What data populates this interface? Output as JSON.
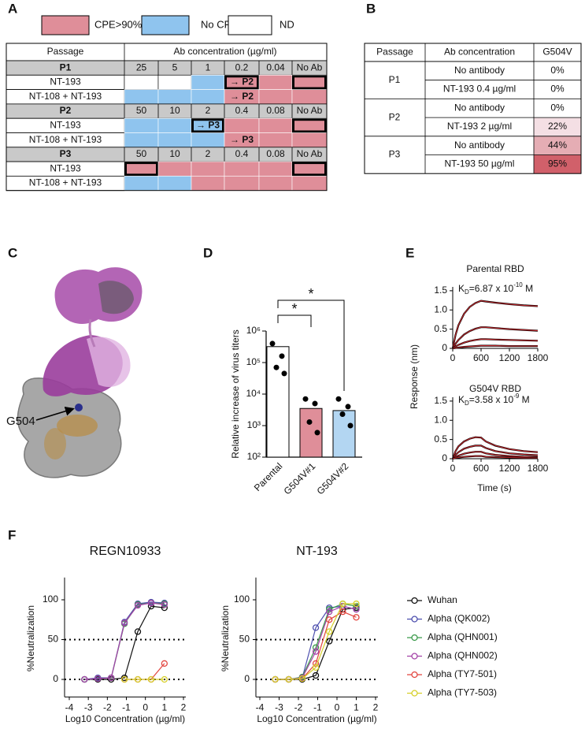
{
  "panel_labels": [
    "A",
    "B",
    "C",
    "D",
    "E",
    "F"
  ],
  "panel_a": {
    "legend": [
      {
        "label": "CPE>90%",
        "color": "#df8e99"
      },
      {
        "label": "No CPE",
        "color": "#8fc4ee"
      },
      {
        "label": "ND",
        "color": "#ffffff"
      }
    ],
    "header": [
      "Passage",
      "Ab concentration (µg/ml)"
    ],
    "blocks": [
      {
        "passage": "P1",
        "concentrations": [
          "25",
          "5",
          "1",
          "0.2",
          "0.04",
          "No Ab"
        ],
        "rows": [
          {
            "label": "NT-193",
            "cells": [
              {
                "state": 2
              },
              {
                "state": 2
              },
              {
                "state": 1
              },
              {
                "state": 0,
                "text": "→ P2",
                "bold": true
              },
              {
                "state": 0
              },
              {
                "state": 0,
                "bold": true
              }
            ]
          },
          {
            "label": "NT-108 + NT-193",
            "cells": [
              {
                "state": 1
              },
              {
                "state": 1
              },
              {
                "state": 1
              },
              {
                "state": 0,
                "text": "→ P2"
              },
              {
                "state": 0
              },
              {
                "state": 0
              }
            ]
          }
        ]
      },
      {
        "passage": "P2",
        "concentrations": [
          "50",
          "10",
          "2",
          "0.4",
          "0.08",
          "No Ab"
        ],
        "rows": [
          {
            "label": "NT-193",
            "cells": [
              {
                "state": 1
              },
              {
                "state": 1
              },
              {
                "state": 1,
                "text": "→ P3",
                "bold": true
              },
              {
                "state": 0
              },
              {
                "state": 0
              },
              {
                "state": 0,
                "bold": true
              }
            ]
          },
          {
            "label": "NT-108 + NT-193",
            "cells": [
              {
                "state": 1
              },
              {
                "state": 1
              },
              {
                "state": 1
              },
              {
                "state": 0,
                "text": "→ P3"
              },
              {
                "state": 0
              },
              {
                "state": 0
              }
            ]
          }
        ]
      },
      {
        "passage": "P3",
        "concentrations": [
          "50",
          "10",
          "2",
          "0.4",
          "0.08",
          "No Ab"
        ],
        "rows": [
          {
            "label": "NT-193",
            "cells": [
              {
                "state": 0,
                "bold": true
              },
              {
                "state": 0
              },
              {
                "state": 0
              },
              {
                "state": 0
              },
              {
                "state": 0
              },
              {
                "state": 0,
                "bold": true
              }
            ]
          },
          {
            "label": "NT-108 + NT-193",
            "cells": [
              {
                "state": 1
              },
              {
                "state": 1
              },
              {
                "state": 0
              },
              {
                "state": 0
              },
              {
                "state": 0
              },
              {
                "state": 0
              }
            ]
          }
        ]
      }
    ]
  },
  "panel_b": {
    "header": [
      "Passage",
      "Ab concentration",
      "G504V"
    ],
    "groups": [
      {
        "passage": "P1",
        "rows": [
          {
            "ab": "No antibody",
            "g504v": "0%",
            "fill": "#ffffff"
          },
          {
            "ab": "NT-193 0.4 µg/ml",
            "g504v": "0%",
            "fill": "#ffffff"
          }
        ]
      },
      {
        "passage": "P2",
        "rows": [
          {
            "ab": "No antibody",
            "g504v": "0%",
            "fill": "#ffffff"
          },
          {
            "ab": "NT-193 2 µg/ml",
            "g504v": "22%",
            "fill": "#f4dfe4"
          }
        ]
      },
      {
        "passage": "P3",
        "rows": [
          {
            "ab": "No antibody",
            "g504v": "44%",
            "fill": "#e5adb4"
          },
          {
            "ab": "NT-193 50 µg/ml",
            "g504v": "95%",
            "fill": "#d1606a"
          }
        ]
      }
    ]
  },
  "panel_c": {
    "label": "G504"
  },
  "chart_data": [
    {
      "type": "bar",
      "log_scale": true,
      "ylabel": "Relative increase of virus titers",
      "categories": [
        "Parental",
        "G504V#1",
        "G504V#2"
      ],
      "values": [
        320000,
        3500,
        3000
      ],
      "colors": [
        "#ffffff",
        "#df8e99",
        "#b3d6f2"
      ],
      "points": [
        [
          400000,
          160000,
          70000,
          45000
        ],
        [
          7000,
          5000,
          1300,
          600
        ],
        [
          7000,
          4000,
          2300,
          1000
        ]
      ],
      "ylim": [
        100,
        1000000
      ],
      "yticks": [
        {
          "value": 100,
          "label": "10²"
        },
        {
          "value": 1000,
          "label": "10³"
        },
        {
          "value": 10000,
          "label": "10⁴"
        },
        {
          "value": 100000,
          "label": "10⁵"
        },
        {
          "value": 1000000,
          "label": "10⁶"
        }
      ],
      "brackets": [
        {
          "text": "*",
          "between": [
            0,
            1
          ]
        },
        {
          "text": "*",
          "between": [
            0,
            2
          ]
        }
      ]
    },
    {
      "type": "kinetics",
      "ylabel": "Response (nm)",
      "xlabel": "Time (s)",
      "x": [
        0,
        60,
        120,
        240,
        360,
        480,
        600,
        700,
        900,
        1200,
        1500,
        1800
      ],
      "xlim": [
        0,
        1800
      ],
      "xticks": [
        0,
        600,
        1200,
        1800
      ],
      "ylim": [
        0,
        1.6
      ],
      "yticks": [
        0,
        0.5,
        {
          "value": 1,
          "label": "1.0"
        },
        1.5
      ],
      "panels": [
        {
          "title": "Parental RBD",
          "kd": {
            "k": "K",
            "sub": "D",
            "text": "=6.87 x 10",
            "sup": "-10",
            "unit": " M"
          },
          "series": [
            {
              "color": "#c0262b",
              "values": [
                0,
                0.35,
                0.6,
                0.9,
                1.08,
                1.18,
                1.24,
                1.22,
                1.19,
                1.15,
                1.12,
                1.1
              ]
            },
            {
              "color": "#c0262b",
              "values": [
                0,
                0.12,
                0.22,
                0.36,
                0.45,
                0.51,
                0.55,
                0.55,
                0.53,
                0.5,
                0.48,
                0.46
              ]
            },
            {
              "color": "#c0262b",
              "values": [
                0,
                0.05,
                0.09,
                0.15,
                0.19,
                0.22,
                0.24,
                0.24,
                0.23,
                0.22,
                0.21,
                0.2
              ]
            },
            {
              "color": "#c0262b",
              "values": [
                0,
                0.01,
                0.02,
                0.04,
                0.05,
                0.06,
                0.07,
                0.07,
                0.07,
                0.06,
                0.06,
                0.06
              ]
            }
          ]
        },
        {
          "title": "G504V RBD",
          "kd": {
            "k": "K",
            "sub": "D",
            "text": "=3.58 x 10",
            "sup": "-9",
            "unit": " M"
          },
          "series": [
            {
              "color": "#c0262b",
              "values": [
                0,
                0.2,
                0.32,
                0.45,
                0.52,
                0.56,
                0.55,
                0.45,
                0.34,
                0.25,
                0.2,
                0.17
              ]
            },
            {
              "color": "#c0262b",
              "values": [
                0,
                0.1,
                0.17,
                0.26,
                0.31,
                0.34,
                0.34,
                0.28,
                0.2,
                0.14,
                0.11,
                0.09
              ]
            },
            {
              "color": "#c0262b",
              "values": [
                0,
                0.05,
                0.08,
                0.13,
                0.16,
                0.18,
                0.18,
                0.14,
                0.1,
                0.07,
                0.05,
                0.04
              ]
            },
            {
              "color": "#c0262b",
              "values": [
                0,
                0.02,
                0.03,
                0.05,
                0.06,
                0.07,
                0.07,
                0.05,
                0.04,
                0.03,
                0.02,
                0.02
              ]
            }
          ]
        }
      ]
    },
    {
      "type": "dose-response",
      "xlabel": "Log10 Concentration (µg/ml)",
      "ylabel": "%Neutralization",
      "panels": [
        {
          "title": "REGN10933"
        },
        {
          "title": "NT-193"
        }
      ],
      "x": [
        -3.2,
        -2.5,
        -1.8,
        -1.1,
        -0.4,
        0.3,
        1
      ],
      "xlim": [
        -4,
        2
      ],
      "xticks": [
        -4,
        -3,
        -2,
        -1,
        0,
        1,
        2
      ],
      "ylim": [
        -22,
        128
      ],
      "yticks": [
        0,
        50,
        100
      ],
      "reference_lines": [
        0,
        50
      ],
      "series": [
        {
          "name": "Wuhan",
          "color": "#111111",
          "values": [
            [
              0,
              0,
              0,
              2,
              60,
              92,
              90
            ],
            [
              0,
              0,
              0,
              5,
              48,
              88,
              90
            ]
          ]
        },
        {
          "name": "Alpha (QK002)",
          "color": "#4d4fae",
          "values": [
            [
              0,
              2,
              2,
              72,
              95,
              97,
              96
            ],
            [
              0,
              0,
              2,
              65,
              90,
              92,
              88
            ]
          ]
        },
        {
          "name": "Alpha (QHN001)",
          "color": "#3a9a4a",
          "values": [
            [
              0,
              1,
              2,
              70,
              94,
              96,
              95
            ],
            [
              0,
              0,
              3,
              40,
              88,
              95,
              92
            ]
          ]
        },
        {
          "name": "Alpha (QHN002)",
          "color": "#a543a8",
          "values": [
            [
              0,
              1,
              2,
              71,
              93,
              96,
              94
            ],
            [
              0,
              0,
              2,
              35,
              85,
              92,
              88
            ]
          ]
        },
        {
          "name": "Alpha (TY7-501)",
          "color": "#e2453f",
          "values": [
            [
              null,
              null,
              null,
              0,
              0,
              0,
              20
            ],
            [
              0,
              0,
              1,
              20,
              75,
              85,
              78
            ]
          ]
        },
        {
          "name": "Alpha (TY7-503)",
          "color": "#d6cf2a",
          "values": [
            [
              null,
              null,
              null,
              0,
              0,
              0,
              0
            ],
            [
              0,
              0,
              1,
              15,
              60,
              95,
              95
            ]
          ]
        }
      ]
    }
  ]
}
